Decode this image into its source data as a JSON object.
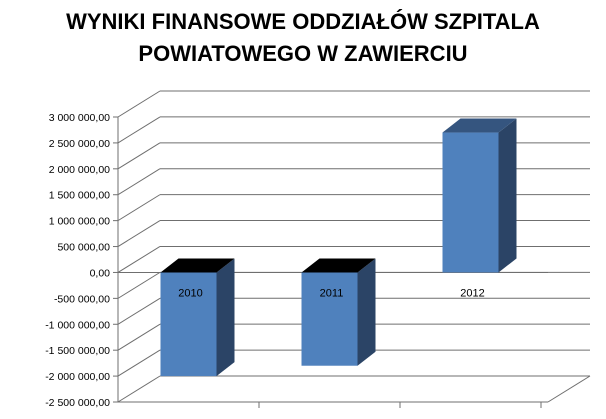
{
  "chart_data": {
    "type": "bar",
    "title_lines": [
      "WYNIKI FINANSOWE ODDZIAŁÓW SZPITALA",
      "POWIATOWEGO W ZAWIERCIU"
    ],
    "categories": [
      "2010",
      "2011",
      "2012"
    ],
    "values": [
      -2000000,
      -1800000,
      2700000
    ],
    "ylim": [
      -2500000,
      3000000
    ],
    "y_ticks": [
      3000000,
      2500000,
      2000000,
      1500000,
      1000000,
      500000,
      0,
      -500000,
      -1000000,
      -1500000,
      -2000000,
      -2500000
    ],
    "y_tick_labels": [
      "3 000 000,00",
      "2 500 000,00",
      "2 000 000,00",
      "1 500 000,00",
      "1 000 000,00",
      "500 000,00",
      "0,00",
      "-500 000,00",
      "-1 000 000,00",
      "-1 500 000,00",
      "-2 000 000,00",
      "-2 500 000,00"
    ],
    "grid": true,
    "three_d": true,
    "colors": {
      "bar_front": "#4f81bd",
      "bar_side": "#2b4466",
      "bar_top_positive": "#35557f",
      "bar_top_negative": "#000000",
      "grid": "#6f6f6f",
      "axis": "#6f6f6f"
    }
  }
}
